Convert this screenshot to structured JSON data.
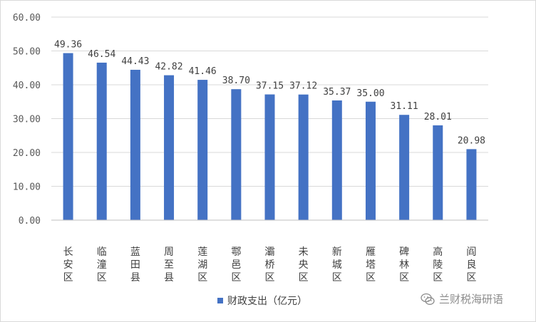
{
  "chart_data": {
    "type": "bar",
    "categories": [
      "长安区",
      "临潼区",
      "蓝田县",
      "周至县",
      "莲湖区",
      "鄠邑区",
      "灞桥区",
      "未央区",
      "新城区",
      "雁塔区",
      "碑林区",
      "高陵区",
      "阎良区"
    ],
    "series": [
      {
        "name": "财政支出（亿元）",
        "values": [
          49.36,
          46.54,
          44.43,
          42.82,
          41.46,
          38.7,
          37.15,
          37.12,
          35.37,
          35.0,
          31.11,
          28.01,
          20.98
        ],
        "labels": [
          "49.36",
          "46.54",
          "44.43",
          "42.82",
          "41.46",
          "38.70",
          "37.15",
          "37.12",
          "35.37",
          "35.00",
          "31.11",
          "28.01",
          "20.98"
        ]
      }
    ],
    "yticks": [
      "0.00",
      "10.00",
      "20.00",
      "30.00",
      "40.00",
      "50.00",
      "60.00"
    ],
    "ylim": [
      0,
      60
    ],
    "grid": true,
    "legend_position": "bottom",
    "bar_color": "#4472c4",
    "grid_color": "#d9d9d9"
  },
  "watermark": {
    "text": "兰财税海研语",
    "icon": "wechat-icon"
  }
}
